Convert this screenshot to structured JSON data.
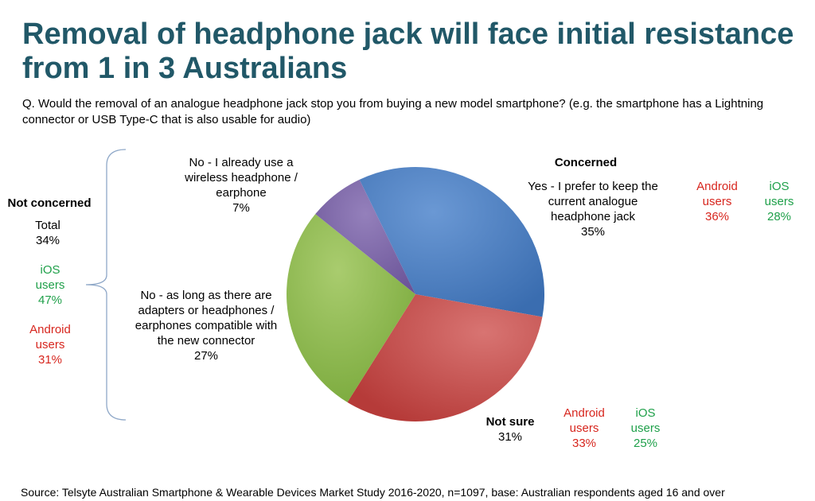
{
  "title": "Removal of headphone jack will face initial resistance from 1 in 3 Australians",
  "question": "Q. Would the removal of an analogue headphone jack stop you from buying a new model smartphone? (e.g. the smartphone has a Lightning connector or USB Type-C that is also usable for audio)",
  "not_concerned": {
    "heading": "Not concerned",
    "total_label": "Total",
    "total_value": "34%",
    "ios_line1": "iOS",
    "ios_line2": "users",
    "ios_value": "47%",
    "android_line1": "Android",
    "android_line2": "users",
    "android_value": "31%"
  },
  "concerned": {
    "heading": "Concerned",
    "android_line1": "Android",
    "android_line2": "users",
    "android_value": "36%",
    "ios_line1": "iOS",
    "ios_line2": "users",
    "ios_value": "28%"
  },
  "not_sure": {
    "android_line1": "Android",
    "android_line2": "users",
    "android_value": "33%",
    "ios_line1": "iOS",
    "ios_line2": "users",
    "ios_value": "25%"
  },
  "slice_labels": {
    "yes": [
      "Yes - I prefer to keep the",
      "current analogue",
      "headphone jack",
      "35%"
    ],
    "not_sure": [
      "Not sure",
      "31%"
    ],
    "adapters": [
      "No - as long as there are",
      "adapters or headphones /",
      "earphones compatible with",
      "the new connector",
      "27%"
    ],
    "wireless": [
      "No - I already use a",
      "wireless headphone /",
      "earphone",
      "7%"
    ]
  },
  "colors": {
    "title": "#215868",
    "android": "#d7261e",
    "ios": "#1fa04a",
    "yes": "#4a7ebf",
    "not_sure": "#c94c4a",
    "adapters": "#8fba4f",
    "wireless": "#7a62a6"
  },
  "source": "Source: Telsyte Australian Smartphone & Wearable Devices Market Study 2016-2020, n=1097, base: Australian respondents aged 16 and over",
  "chart_data": {
    "type": "pie",
    "categories": [
      "Yes - I prefer to keep the current analogue headphone jack",
      "Not sure",
      "No - as long as there are adapters or headphones / earphones compatible with the new connector",
      "No - I already use a wireless headphone / earphone"
    ],
    "values": [
      35,
      31,
      27,
      7
    ],
    "title": "Removal of headphone jack will face initial resistance from 1 in 3 Australians"
  }
}
